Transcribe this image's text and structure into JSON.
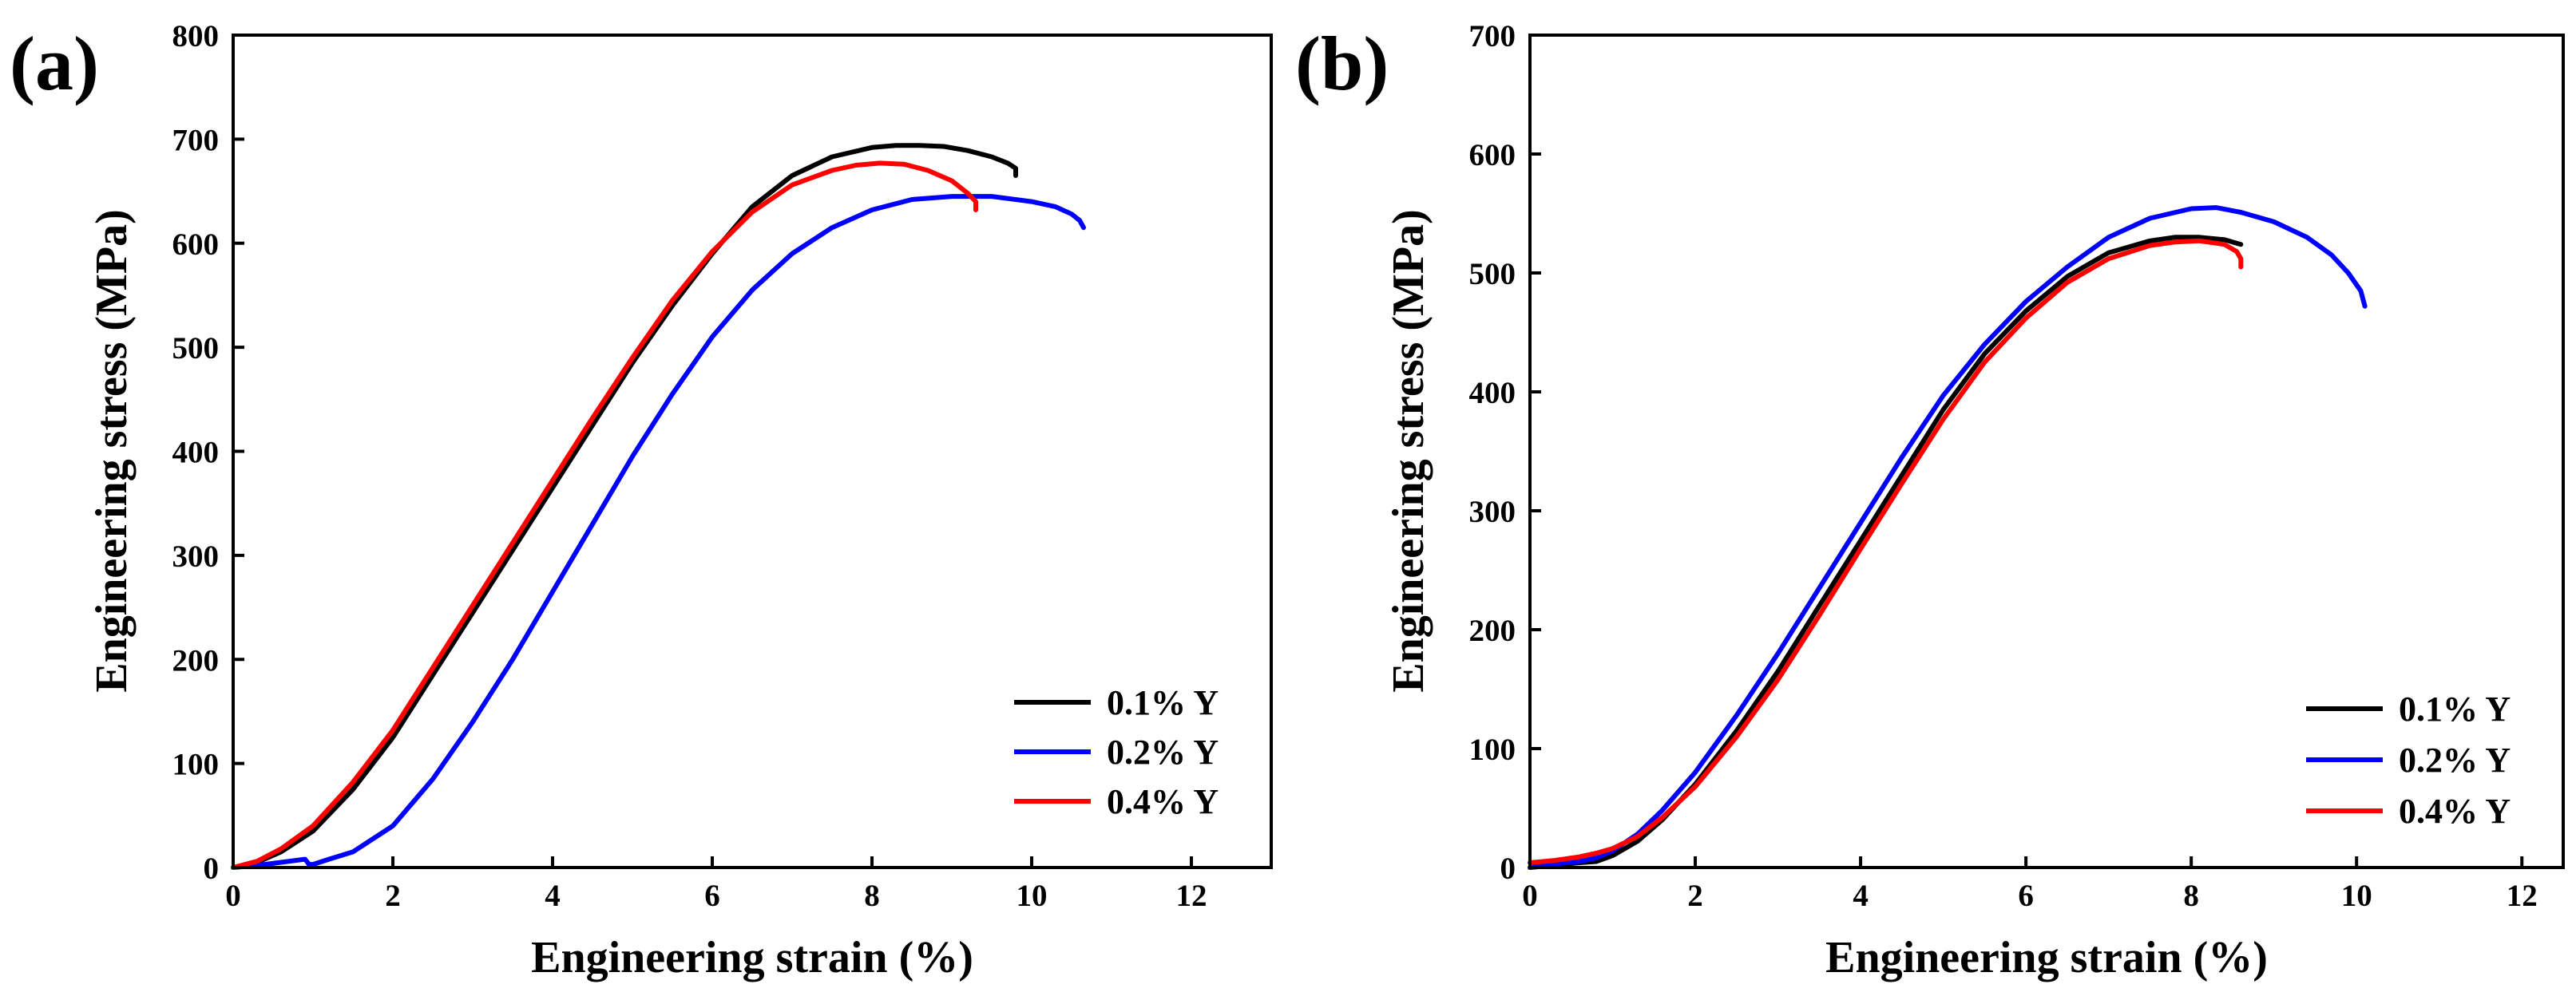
{
  "chart_data": [
    {
      "type": "line",
      "panel_label": "(a)",
      "xlabel": "Engineering strain (%)",
      "ylabel": "Engineering stress (MPa)",
      "xlim": [
        0,
        13
      ],
      "ylim": [
        0,
        800
      ],
      "xticks": [
        0,
        2,
        4,
        6,
        8,
        10,
        12
      ],
      "yticks": [
        0,
        100,
        200,
        300,
        400,
        500,
        600,
        700,
        800
      ],
      "grid": false,
      "legend_position": "bottom-right",
      "series": [
        {
          "name": "0.1% Y",
          "color": "#000000",
          "x": [
            0,
            0.3,
            0.6,
            1.0,
            1.5,
            2.0,
            2.5,
            3.0,
            3.5,
            4.0,
            4.5,
            5.0,
            5.5,
            6.0,
            6.5,
            7.0,
            7.5,
            8.0,
            8.3,
            8.6,
            8.9,
            9.2,
            9.5,
            9.7,
            9.8,
            9.8
          ],
          "y": [
            0,
            5,
            15,
            35,
            75,
            125,
            185,
            245,
            305,
            365,
            425,
            485,
            540,
            590,
            635,
            665,
            683,
            692,
            694,
            694,
            693,
            689,
            683,
            677,
            672,
            665
          ]
        },
        {
          "name": "0.2% Y",
          "color": "#0000ff",
          "x": [
            0,
            0.3,
            0.6,
            0.9,
            0.95,
            1.0,
            1.2,
            1.5,
            2.0,
            2.5,
            3.0,
            3.5,
            4.0,
            4.5,
            5.0,
            5.5,
            6.0,
            6.5,
            7.0,
            7.5,
            8.0,
            8.5,
            9.0,
            9.5,
            10.0,
            10.3,
            10.5,
            10.6,
            10.65
          ],
          "y": [
            0,
            2,
            5,
            8,
            3,
            3,
            8,
            15,
            40,
            85,
            140,
            200,
            265,
            330,
            395,
            455,
            510,
            555,
            590,
            615,
            632,
            642,
            645,
            645,
            640,
            635,
            628,
            622,
            615
          ]
        },
        {
          "name": "0.4% Y",
          "color": "#ff0000",
          "x": [
            0,
            0.3,
            0.6,
            1.0,
            1.5,
            2.0,
            2.5,
            3.0,
            3.5,
            4.0,
            4.5,
            5.0,
            5.5,
            6.0,
            6.5,
            7.0,
            7.5,
            7.8,
            8.1,
            8.4,
            8.7,
            9.0,
            9.2,
            9.3,
            9.3
          ],
          "y": [
            0,
            6,
            18,
            40,
            82,
            132,
            192,
            252,
            312,
            372,
            432,
            490,
            545,
            592,
            630,
            656,
            670,
            675,
            677,
            676,
            670,
            660,
            648,
            640,
            632
          ]
        }
      ]
    },
    {
      "type": "line",
      "panel_label": "(b)",
      "xlabel": "Engineering strain (%)",
      "ylabel": "Engineering stress (MPa)",
      "xlim": [
        0,
        12.5
      ],
      "ylim": [
        0,
        700
      ],
      "xticks": [
        0,
        2,
        4,
        6,
        8,
        10,
        12
      ],
      "yticks": [
        0,
        100,
        200,
        300,
        400,
        500,
        600,
        700
      ],
      "grid": false,
      "legend_position": "bottom-right",
      "series": [
        {
          "name": "0.1% Y",
          "color": "#000000",
          "x": [
            0,
            0.3,
            0.6,
            0.8,
            1.0,
            1.3,
            1.6,
            2.0,
            2.5,
            3.0,
            3.5,
            4.0,
            4.5,
            5.0,
            5.5,
            6.0,
            6.5,
            7.0,
            7.5,
            7.8,
            8.1,
            8.4,
            8.6
          ],
          "y": [
            0,
            2,
            4,
            5,
            10,
            22,
            40,
            70,
            115,
            165,
            220,
            275,
            330,
            385,
            432,
            468,
            497,
            517,
            527,
            530,
            530,
            528,
            524
          ]
        },
        {
          "name": "0.2% Y",
          "color": "#0000ff",
          "x": [
            0,
            0.3,
            0.6,
            0.8,
            1.0,
            1.3,
            1.6,
            2.0,
            2.5,
            3.0,
            3.5,
            4.0,
            4.5,
            5.0,
            5.5,
            6.0,
            6.5,
            7.0,
            7.5,
            8.0,
            8.3,
            8.6,
            9.0,
            9.4,
            9.7,
            9.9,
            10.05,
            10.1
          ],
          "y": [
            0,
            3,
            5,
            8,
            14,
            28,
            48,
            80,
            128,
            180,
            235,
            290,
            345,
            397,
            440,
            476,
            505,
            530,
            546,
            554,
            555,
            551,
            543,
            530,
            515,
            500,
            485,
            472
          ]
        },
        {
          "name": "0.4% Y",
          "color": "#ff0000",
          "x": [
            0,
            0.3,
            0.6,
            0.8,
            1.0,
            1.3,
            1.6,
            2.0,
            2.5,
            3.0,
            3.5,
            4.0,
            4.5,
            5.0,
            5.5,
            6.0,
            6.5,
            7.0,
            7.5,
            7.8,
            8.1,
            8.4,
            8.55,
            8.6,
            8.6
          ],
          "y": [
            4,
            6,
            9,
            12,
            16,
            26,
            42,
            68,
            110,
            158,
            212,
            268,
            323,
            377,
            425,
            462,
            492,
            512,
            523,
            526,
            527,
            524,
            518,
            512,
            505
          ]
        }
      ]
    }
  ]
}
